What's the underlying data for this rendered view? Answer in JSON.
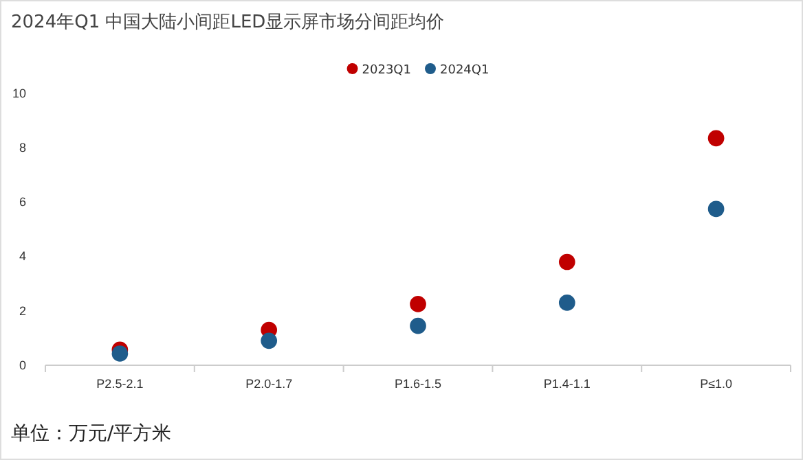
{
  "chart_data": {
    "type": "scatter",
    "title": "2024年Q1 中国大陆小间距LED显示屏市场分间距均价",
    "categories": [
      "P2.5-2.1",
      "P2.0-1.7",
      "P1.6-1.5",
      "P1.4-1.1",
      "P≤1.0"
    ],
    "series": [
      {
        "name": "2023Q1",
        "color": "#c00000",
        "values": [
          0.57,
          1.3,
          2.25,
          3.8,
          8.35
        ]
      },
      {
        "name": "2024Q1",
        "color": "#1f5c8b",
        "values": [
          0.43,
          0.9,
          1.45,
          2.3,
          5.75
        ]
      }
    ],
    "ylim": [
      0,
      10
    ],
    "yticks": [
      0,
      2,
      4,
      6,
      8,
      10
    ],
    "grid": false,
    "legend": "top",
    "marker": "circle",
    "annotations": [
      "单位：万元/平方米"
    ]
  }
}
